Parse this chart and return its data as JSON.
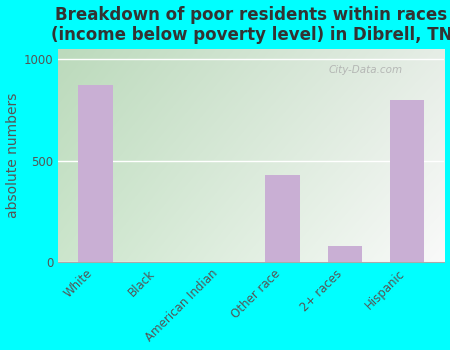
{
  "title": "Breakdown of poor residents within races\n(income below poverty level) in Dibrell, TN",
  "categories": [
    "White",
    "Black",
    "American Indian",
    "Other race",
    "2+ races",
    "Hispanic"
  ],
  "values": [
    870,
    0,
    0,
    430,
    80,
    800
  ],
  "bar_color": "#c9afd4",
  "ylabel": "absolute numbers",
  "ylim": [
    0,
    1050
  ],
  "yticks": [
    0,
    500,
    1000
  ],
  "background_color": "#00ffff",
  "title_fontsize": 12,
  "ylabel_fontsize": 10,
  "tick_fontsize": 8.5,
  "watermark_text": "City-Data.com",
  "grid_color": "#ffffff",
  "bg_left_color": "#c8e6c0",
  "bg_right_color": "#f0f8f0"
}
